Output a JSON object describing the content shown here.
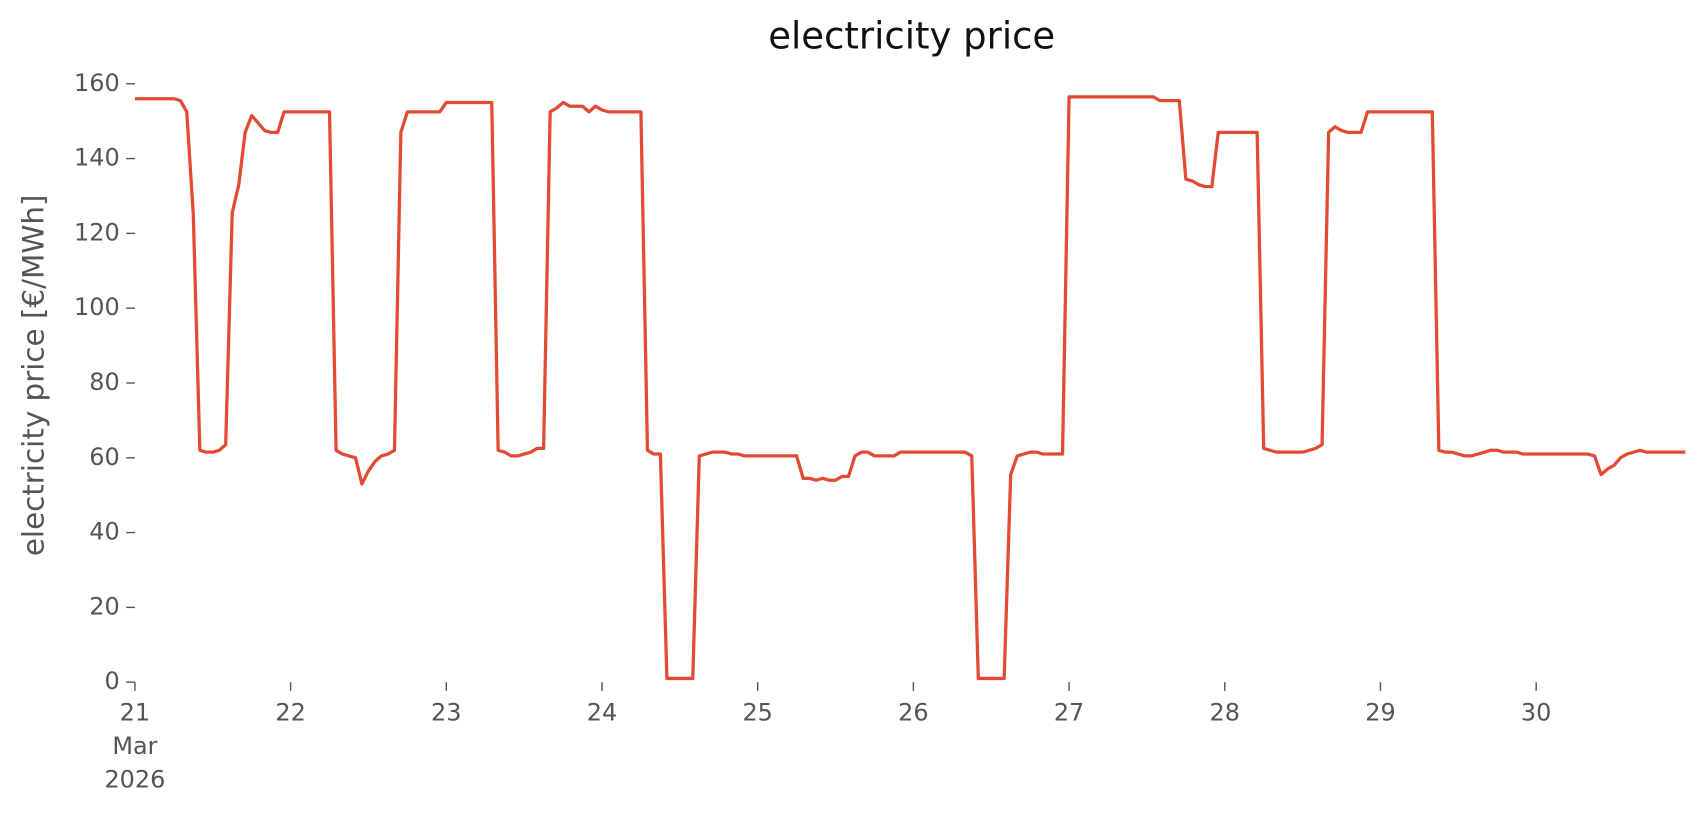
{
  "chart_data": {
    "type": "line",
    "title": "electricity price",
    "ylabel": "electricity price [€/MWh]",
    "x": [
      21.0,
      21.25,
      21.292,
      21.333,
      21.375,
      21.417,
      21.458,
      21.5,
      21.542,
      21.583,
      21.625,
      21.667,
      21.708,
      21.75,
      21.792,
      21.833,
      21.875,
      21.917,
      21.958,
      22.25,
      22.292,
      22.333,
      22.375,
      22.417,
      22.458,
      22.5,
      22.542,
      22.583,
      22.625,
      22.667,
      22.708,
      22.75,
      22.958,
      23.0,
      23.292,
      23.333,
      23.375,
      23.417,
      23.458,
      23.5,
      23.542,
      23.583,
      23.625,
      23.667,
      23.708,
      23.75,
      23.792,
      23.875,
      23.917,
      23.958,
      24.0,
      24.042,
      24.25,
      24.292,
      24.333,
      24.375,
      24.417,
      24.583,
      24.625,
      24.667,
      24.708,
      24.792,
      24.833,
      24.875,
      24.917,
      25.25,
      25.292,
      25.333,
      25.375,
      25.417,
      25.458,
      25.5,
      25.542,
      25.583,
      25.625,
      25.667,
      25.708,
      25.75,
      25.875,
      25.917,
      26.333,
      26.375,
      26.417,
      26.583,
      26.625,
      26.667,
      26.708,
      26.75,
      26.792,
      26.833,
      26.958,
      27.0,
      27.542,
      27.583,
      27.708,
      27.75,
      27.792,
      27.833,
      27.875,
      27.917,
      27.958,
      28.208,
      28.25,
      28.292,
      28.333,
      28.5,
      28.542,
      28.583,
      28.625,
      28.667,
      28.708,
      28.75,
      28.792,
      28.875,
      28.917,
      29.333,
      29.375,
      29.417,
      29.458,
      29.5,
      29.542,
      29.583,
      29.625,
      29.667,
      29.708,
      29.75,
      29.792,
      29.875,
      29.917,
      30.333,
      30.375,
      30.417,
      30.458,
      30.5,
      30.542,
      30.583,
      30.625,
      30.667,
      30.708,
      30.958
    ],
    "series": [
      {
        "name": "electricity price",
        "color": "#e24a33",
        "values": [
          156,
          156,
          155.5,
          152.5,
          125,
          62,
          61.5,
          61.5,
          62,
          63.5,
          125.5,
          133,
          147,
          151.5,
          149.5,
          147.5,
          147,
          147,
          152.5,
          152.5,
          62,
          61,
          60.5,
          60,
          53,
          56.5,
          59,
          60.5,
          61,
          62,
          147,
          152.5,
          152.5,
          155,
          155,
          62,
          61.5,
          60.5,
          60.5,
          61,
          61.5,
          62.5,
          62.5,
          152.5,
          153.5,
          155,
          154,
          154,
          152.5,
          154,
          153,
          152.5,
          152.5,
          62,
          61,
          61,
          1,
          1,
          60.5,
          61,
          61.5,
          61.5,
          61,
          61,
          60.5,
          60.5,
          54.5,
          54.5,
          54,
          54.5,
          54,
          54,
          55,
          55,
          60.5,
          61.5,
          61.5,
          60.5,
          60.5,
          61.5,
          61.5,
          60.5,
          1,
          1,
          55.5,
          60.5,
          61,
          61.5,
          61.5,
          61,
          61,
          156.5,
          156.5,
          155.5,
          155.5,
          134.5,
          134,
          133,
          132.5,
          132.5,
          147,
          147,
          62.5,
          62,
          61.5,
          61.5,
          62,
          62.5,
          63.5,
          147,
          148.5,
          147.5,
          147,
          147,
          152.5,
          152.5,
          62,
          61.5,
          61.5,
          61,
          60.5,
          60.5,
          61,
          61.5,
          62,
          62,
          61.5,
          61.5,
          61,
          61,
          60.5,
          55.5,
          57,
          58,
          60,
          61,
          61.5,
          62,
          61.5,
          61.5
        ]
      }
    ],
    "xlim": [
      21,
      30.958
    ],
    "xticks": [
      {
        "value": 21,
        "label": "21\nMar\n2026"
      },
      22,
      23,
      24,
      25,
      26,
      27,
      28,
      29,
      30
    ],
    "ylim": [
      0,
      160
    ],
    "yticks": [
      0,
      20,
      40,
      60,
      80,
      100,
      120,
      140,
      160
    ],
    "grid": false
  }
}
